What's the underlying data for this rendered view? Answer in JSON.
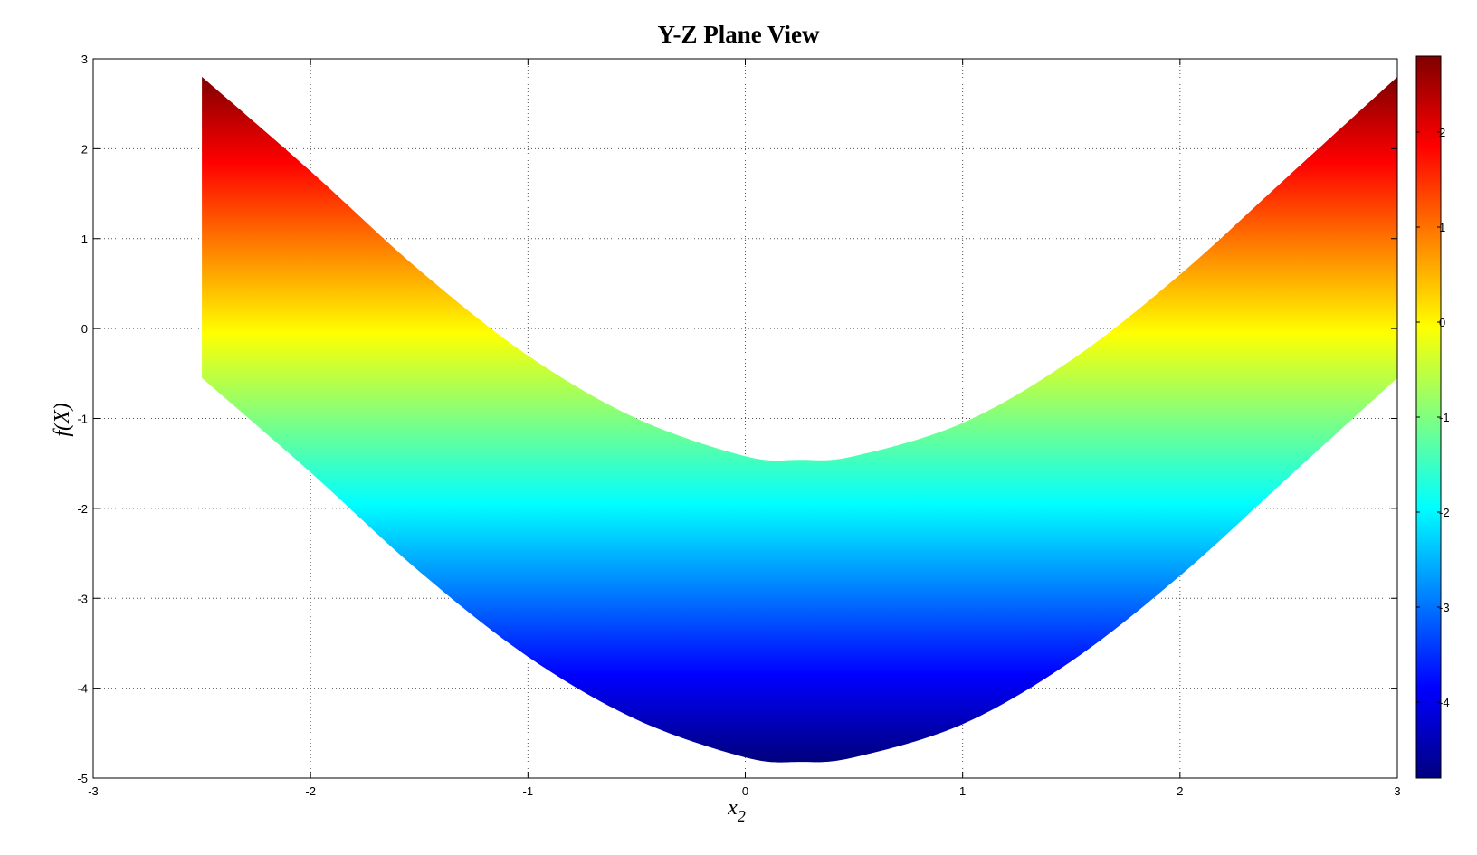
{
  "chart_data": {
    "type": "area",
    "title": "Y-Z Plane View",
    "xlabel_main": "x",
    "xlabel_sub": "2",
    "ylabel": "f(X)",
    "xlim": [
      -3,
      3
    ],
    "ylim": [
      -5,
      3
    ],
    "xticks": [
      "-3",
      "-2",
      "-1",
      "0",
      "1",
      "2",
      "3"
    ],
    "yticks": [
      "-5",
      "-4",
      "-3",
      "-2",
      "-1",
      "0",
      "1",
      "2",
      "3"
    ],
    "grid": true,
    "colormap": "jet",
    "colorbar": {
      "range": [
        -4.8,
        2.8
      ],
      "ticks": [
        "-4",
        "-3",
        "-2",
        "-1",
        "0",
        "1",
        "2"
      ],
      "placement": "right"
    },
    "x_range": [
      -2.5,
      3
    ],
    "upper_curve": {
      "x": [
        -2.5,
        -2.0,
        -1.5,
        -1.0,
        -0.5,
        0.0,
        0.25,
        0.5,
        1.0,
        1.5,
        2.0,
        2.5,
        3.0
      ],
      "y": [
        2.8,
        1.75,
        0.65,
        -0.3,
        -1.0,
        -1.42,
        -1.46,
        -1.42,
        -1.05,
        -0.35,
        0.6,
        1.7,
        2.8
      ]
    },
    "lower_curve": {
      "x": [
        -2.5,
        -2.0,
        -1.5,
        -1.0,
        -0.5,
        0.0,
        0.25,
        0.5,
        1.0,
        1.5,
        2.0,
        2.5,
        3.0
      ],
      "y": [
        -0.55,
        -1.6,
        -2.7,
        -3.65,
        -4.35,
        -4.77,
        -4.82,
        -4.77,
        -4.4,
        -3.7,
        -2.75,
        -1.65,
        -0.55
      ]
    }
  }
}
